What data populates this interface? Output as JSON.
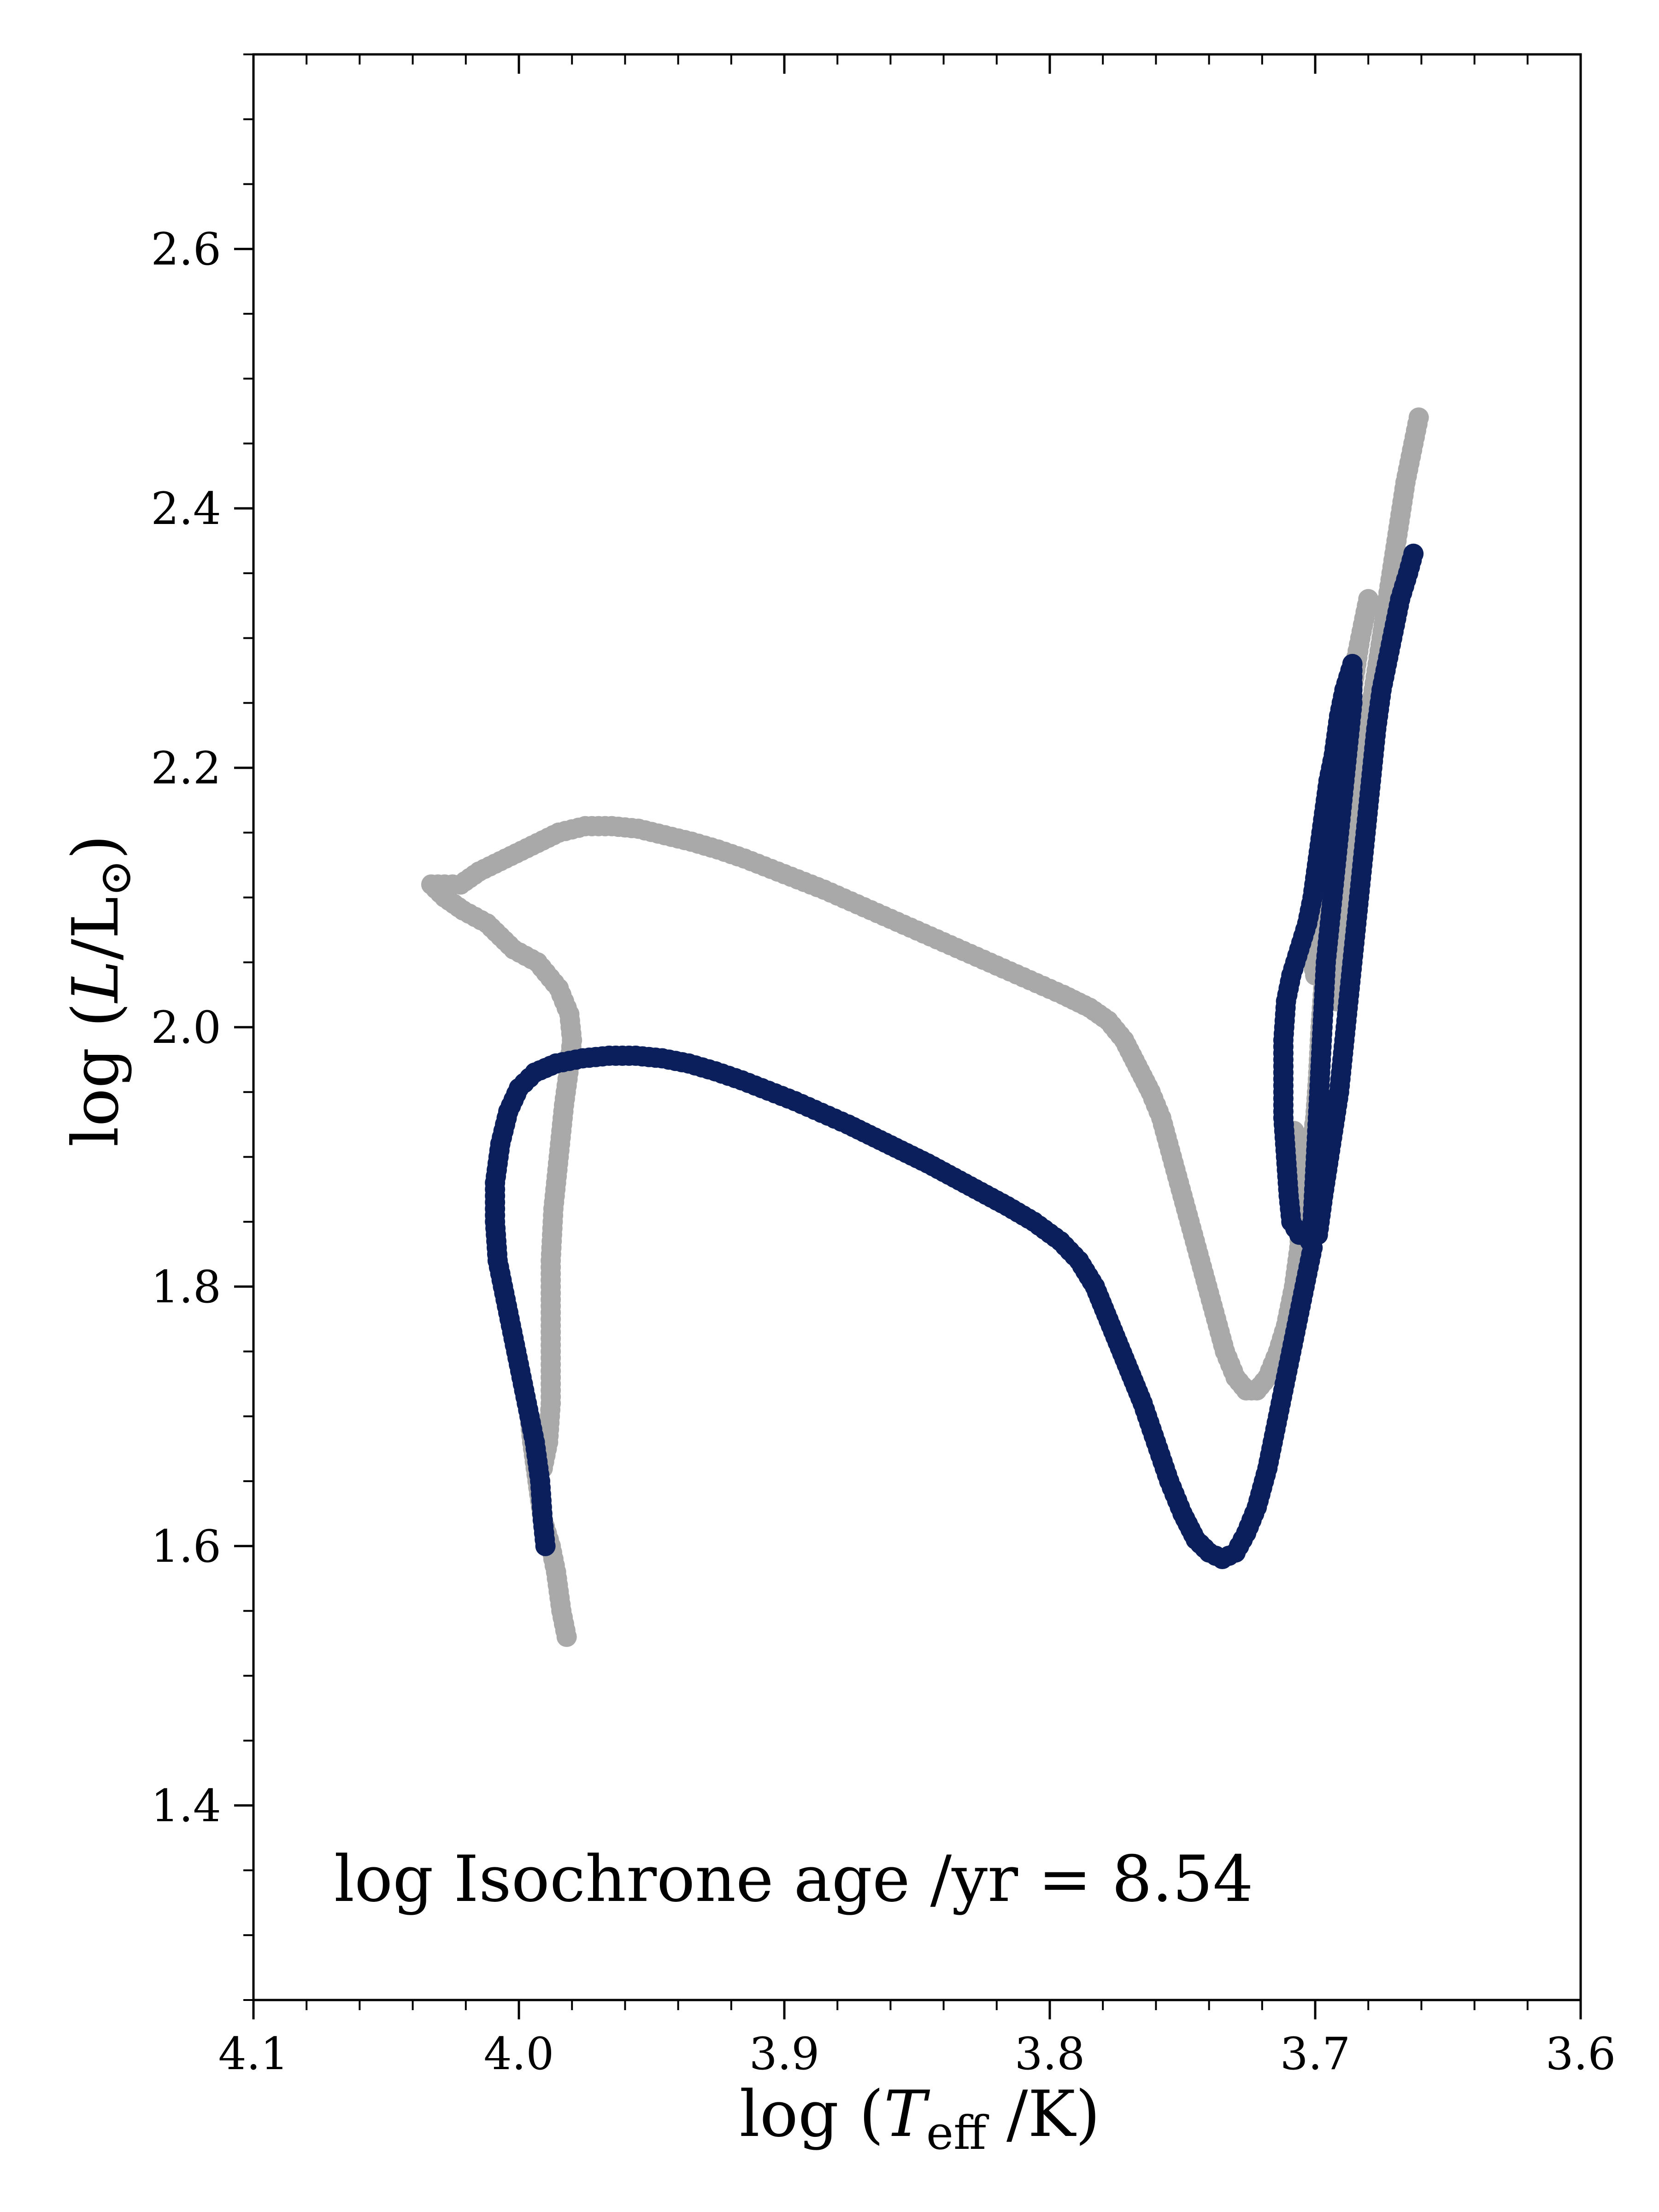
{
  "chart_data": {
    "type": "scatter",
    "title": "",
    "xlabel": "log (T_eff /K)",
    "xlabel_parts": {
      "prefix": "log (",
      "symbol": "T",
      "subscript": "eff",
      "suffix": " /K)"
    },
    "ylabel": "log (L/L⊙)",
    "ylabel_parts": {
      "prefix": "log (",
      "symbol": "L",
      "middle": "/L",
      "sun": "⊙",
      "suffix": ")"
    },
    "xlim": [
      4.1,
      3.6
    ],
    "x_inverted": true,
    "ylim": [
      1.25,
      2.75
    ],
    "x_ticks": [
      4.1,
      4.0,
      3.9,
      3.8,
      3.7,
      3.6
    ],
    "x_tick_labels": [
      "4.1",
      "4.0",
      "3.9",
      "3.8",
      "3.7",
      "3.6"
    ],
    "y_ticks": [
      1.4,
      1.6,
      1.8,
      2.0,
      2.2,
      2.4,
      2.6
    ],
    "y_tick_labels": [
      "1.4",
      "1.6",
      "1.8",
      "2.0",
      "2.2",
      "2.4",
      "2.6"
    ],
    "x_minor_step": 0.02,
    "y_minor_step": 0.05,
    "grid": false,
    "legend": "none",
    "annotation": "log Isochrone age /yr = 8.54",
    "series": [
      {
        "color": "#a9a9a9",
        "points": [
          [
            3.982,
            1.53
          ],
          [
            3.984,
            1.55
          ],
          [
            3.986,
            1.58
          ],
          [
            3.988,
            1.6
          ],
          [
            3.991,
            1.62
          ],
          [
            3.993,
            1.65
          ],
          [
            3.995,
            1.68
          ],
          [
            3.996,
            1.7
          ],
          [
            3.993,
            1.68
          ],
          [
            3.991,
            1.66
          ],
          [
            3.989,
            1.68
          ],
          [
            3.988,
            1.71
          ],
          [
            3.988,
            1.74
          ],
          [
            3.988,
            1.78
          ],
          [
            3.988,
            1.82
          ],
          [
            3.987,
            1.86
          ],
          [
            3.985,
            1.9
          ],
          [
            3.983,
            1.94
          ],
          [
            3.981,
            1.97
          ],
          [
            3.98,
            1.99
          ],
          [
            3.981,
            2.01
          ],
          [
            3.985,
            2.03
          ],
          [
            3.993,
            2.05
          ],
          [
            4.002,
            2.06
          ],
          [
            4.012,
            2.08
          ],
          [
            4.021,
            2.09
          ],
          [
            4.028,
            2.1
          ],
          [
            4.033,
            2.11
          ],
          [
            4.028,
            2.11
          ],
          [
            4.022,
            2.11
          ],
          [
            4.015,
            2.12
          ],
          [
            4.005,
            2.13
          ],
          [
            3.995,
            2.14
          ],
          [
            3.985,
            2.15
          ],
          [
            3.975,
            2.155
          ],
          [
            3.965,
            2.155
          ],
          [
            3.955,
            2.153
          ],
          [
            3.945,
            2.148
          ],
          [
            3.935,
            2.143
          ],
          [
            3.925,
            2.137
          ],
          [
            3.915,
            2.13
          ],
          [
            3.905,
            2.122
          ],
          [
            3.895,
            2.114
          ],
          [
            3.885,
            2.106
          ],
          [
            3.875,
            2.097
          ],
          [
            3.865,
            2.088
          ],
          [
            3.855,
            2.079
          ],
          [
            3.845,
            2.07
          ],
          [
            3.835,
            2.061
          ],
          [
            3.825,
            2.052
          ],
          [
            3.815,
            2.043
          ],
          [
            3.805,
            2.034
          ],
          [
            3.795,
            2.025
          ],
          [
            3.785,
            2.015
          ],
          [
            3.778,
            2.005
          ],
          [
            3.772,
            1.99
          ],
          [
            3.767,
            1.97
          ],
          [
            3.762,
            1.95
          ],
          [
            3.758,
            1.93
          ],
          [
            3.754,
            1.9
          ],
          [
            3.75,
            1.87
          ],
          [
            3.746,
            1.84
          ],
          [
            3.742,
            1.81
          ],
          [
            3.738,
            1.78
          ],
          [
            3.734,
            1.75
          ],
          [
            3.73,
            1.73
          ],
          [
            3.726,
            1.72
          ],
          [
            3.722,
            1.72
          ],
          [
            3.718,
            1.73
          ],
          [
            3.714,
            1.75
          ],
          [
            3.711,
            1.77
          ],
          [
            3.708,
            1.8
          ],
          [
            3.706,
            1.83
          ],
          [
            3.705,
            1.86
          ],
          [
            3.706,
            1.89
          ],
          [
            3.708,
            1.92
          ],
          [
            3.706,
            1.9
          ],
          [
            3.704,
            1.88
          ],
          [
            3.702,
            1.9
          ],
          [
            3.7,
            1.93
          ],
          [
            3.699,
            1.96
          ],
          [
            3.698,
            2.0
          ],
          [
            3.697,
            2.03
          ],
          [
            3.696,
            2.06
          ],
          [
            3.698,
            2.07
          ],
          [
            3.7,
            2.04
          ],
          [
            3.702,
            2.06
          ],
          [
            3.703,
            2.08
          ],
          [
            3.702,
            2.09
          ],
          [
            3.7,
            2.11
          ],
          [
            3.698,
            2.13
          ],
          [
            3.696,
            2.15
          ],
          [
            3.694,
            2.17
          ],
          [
            3.692,
            2.19
          ],
          [
            3.69,
            2.22
          ],
          [
            3.688,
            2.25
          ],
          [
            3.685,
            2.28
          ],
          [
            3.682,
            2.31
          ],
          [
            3.68,
            2.33
          ],
          [
            3.683,
            2.3
          ],
          [
            3.686,
            2.26
          ],
          [
            3.689,
            2.22
          ],
          [
            3.692,
            2.17
          ],
          [
            3.694,
            2.12
          ],
          [
            3.696,
            2.07
          ],
          [
            3.694,
            2.04
          ],
          [
            3.692,
            2.02
          ],
          [
            3.69,
            2.06
          ],
          [
            3.688,
            2.1
          ],
          [
            3.686,
            2.14
          ],
          [
            3.684,
            2.18
          ],
          [
            3.681,
            2.22
          ],
          [
            3.678,
            2.26
          ],
          [
            3.675,
            2.3
          ],
          [
            3.672,
            2.34
          ],
          [
            3.669,
            2.38
          ],
          [
            3.666,
            2.42
          ],
          [
            3.663,
            2.45
          ],
          [
            3.661,
            2.47
          ]
        ]
      },
      {
        "color": "#0b1f5c",
        "points": [
          [
            3.99,
            1.6
          ],
          [
            3.991,
            1.62
          ],
          [
            3.992,
            1.65
          ],
          [
            3.994,
            1.68
          ],
          [
            3.996,
            1.7
          ],
          [
            3.999,
            1.73
          ],
          [
            4.002,
            1.76
          ],
          [
            4.005,
            1.79
          ],
          [
            4.008,
            1.82
          ],
          [
            4.009,
            1.85
          ],
          [
            4.009,
            1.88
          ],
          [
            4.007,
            1.91
          ],
          [
            4.004,
            1.935
          ],
          [
            4.0,
            1.953
          ],
          [
            3.994,
            1.965
          ],
          [
            3.986,
            1.972
          ],
          [
            3.976,
            1.976
          ],
          [
            3.966,
            1.978
          ],
          [
            3.956,
            1.978
          ],
          [
            3.946,
            1.976
          ],
          [
            3.936,
            1.972
          ],
          [
            3.926,
            1.966
          ],
          [
            3.916,
            1.959
          ],
          [
            3.906,
            1.951
          ],
          [
            3.896,
            1.943
          ],
          [
            3.886,
            1.934
          ],
          [
            3.876,
            1.925
          ],
          [
            3.866,
            1.915
          ],
          [
            3.856,
            1.905
          ],
          [
            3.846,
            1.895
          ],
          [
            3.836,
            1.884
          ],
          [
            3.826,
            1.873
          ],
          [
            3.816,
            1.862
          ],
          [
            3.806,
            1.85
          ],
          [
            3.796,
            1.835
          ],
          [
            3.789,
            1.82
          ],
          [
            3.783,
            1.8
          ],
          [
            3.777,
            1.77
          ],
          [
            3.771,
            1.74
          ],
          [
            3.765,
            1.71
          ],
          [
            3.76,
            1.68
          ],
          [
            3.755,
            1.65
          ],
          [
            3.75,
            1.625
          ],
          [
            3.745,
            1.605
          ],
          [
            3.74,
            1.595
          ],
          [
            3.735,
            1.59
          ],
          [
            3.73,
            1.595
          ],
          [
            3.726,
            1.61
          ],
          [
            3.722,
            1.63
          ],
          [
            3.718,
            1.66
          ],
          [
            3.715,
            1.69
          ],
          [
            3.712,
            1.72
          ],
          [
            3.709,
            1.75
          ],
          [
            3.706,
            1.78
          ],
          [
            3.703,
            1.81
          ],
          [
            3.701,
            1.83
          ],
          [
            3.703,
            1.84
          ],
          [
            3.706,
            1.84
          ],
          [
            3.709,
            1.85
          ],
          [
            3.71,
            1.87
          ],
          [
            3.711,
            1.9
          ],
          [
            3.712,
            1.93
          ],
          [
            3.712,
            1.96
          ],
          [
            3.712,
            1.99
          ],
          [
            3.711,
            2.02
          ],
          [
            3.709,
            2.04
          ],
          [
            3.706,
            2.06
          ],
          [
            3.703,
            2.08
          ],
          [
            3.701,
            2.1
          ],
          [
            3.699,
            2.13
          ],
          [
            3.697,
            2.16
          ],
          [
            3.695,
            2.19
          ],
          [
            3.693,
            2.21
          ],
          [
            3.691,
            2.24
          ],
          [
            3.689,
            2.26
          ],
          [
            3.686,
            2.28
          ],
          [
            3.686,
            2.25
          ],
          [
            3.688,
            2.21
          ],
          [
            3.69,
            2.17
          ],
          [
            3.692,
            2.13
          ],
          [
            3.694,
            2.09
          ],
          [
            3.696,
            2.05
          ],
          [
            3.697,
            2.01
          ],
          [
            3.698,
            1.97
          ],
          [
            3.699,
            1.93
          ],
          [
            3.7,
            1.89
          ],
          [
            3.701,
            1.85
          ],
          [
            3.699,
            1.84
          ],
          [
            3.697,
            1.87
          ],
          [
            3.694,
            1.91
          ],
          [
            3.691,
            1.95
          ],
          [
            3.689,
            1.99
          ],
          [
            3.687,
            2.03
          ],
          [
            3.685,
            2.07
          ],
          [
            3.683,
            2.11
          ],
          [
            3.681,
            2.15
          ],
          [
            3.679,
            2.19
          ],
          [
            3.677,
            2.23
          ],
          [
            3.675,
            2.26
          ],
          [
            3.672,
            2.29
          ],
          [
            3.67,
            2.31
          ],
          [
            3.668,
            2.33
          ],
          [
            3.665,
            2.35
          ],
          [
            3.663,
            2.365
          ]
        ]
      }
    ]
  }
}
